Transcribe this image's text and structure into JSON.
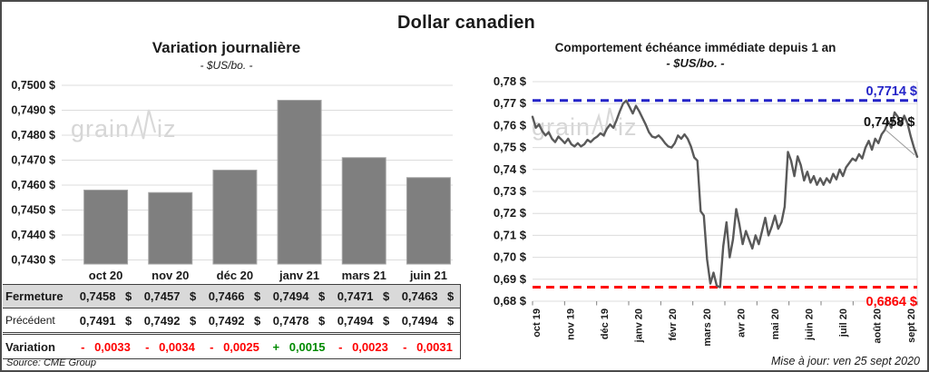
{
  "page": {
    "title": "Dollar canadien",
    "source": "Source: CME Group",
    "updated": "Mise à jour: ven 25 sept 2020",
    "watermark": {
      "left_text": "grain",
      "right_text": "iz"
    }
  },
  "colors": {
    "bar_fill": "#7f7f7f",
    "bar_stroke": "#a6a6a6",
    "line_series": "#595959",
    "grid": "#dcdcdc",
    "max_line": "#2424c8",
    "min_line": "#fe0000",
    "positive": "#008a00",
    "negative": "#fe0000",
    "table_row_bg": "#d9d9d9",
    "axis_text": "#1a1a1a",
    "leader": "#9a9a9a",
    "watermark": "#d6d6d6"
  },
  "chart_data": [
    {
      "type": "bar",
      "title": "Variation journalière",
      "subtitle": "- $US/bo. -",
      "categories": [
        "oct 20",
        "nov 20",
        "déc 20",
        "janv 21",
        "mars 21",
        "juin 21"
      ],
      "values": [
        0.7458,
        0.7457,
        0.7466,
        0.7494,
        0.7471,
        0.7463
      ],
      "ylim": [
        0.74285,
        0.75
      ],
      "ytick_values": [
        0.75,
        0.749,
        0.748,
        0.747,
        0.746,
        0.745,
        0.744,
        0.743
      ],
      "ytick_labels": [
        "0,7500 $",
        "0,7490 $",
        "0,7480 $",
        "0,7470 $",
        "0,7460 $",
        "0,7450 $",
        "0,7440 $",
        "0,7430 $"
      ],
      "grid": true,
      "legend": "none"
    },
    {
      "type": "line",
      "title": "Comportement échéance immédiate depuis 1 an",
      "subtitle": "- $US/bo. -",
      "x_labels": [
        "oct 19",
        "nov 19",
        "déc 19",
        "janv 20",
        "févr 20",
        "mars 20",
        "avr 20",
        "mai 20",
        "juin 20",
        "juil 20",
        "août 20",
        "sept 20"
      ],
      "values": [
        0.764,
        0.759,
        0.7605,
        0.7575,
        0.7555,
        0.757,
        0.754,
        0.7525,
        0.755,
        0.7535,
        0.752,
        0.754,
        0.7515,
        0.7505,
        0.752,
        0.7505,
        0.7515,
        0.7535,
        0.7525,
        0.754,
        0.755,
        0.7565,
        0.7555,
        0.7585,
        0.7605,
        0.759,
        0.7625,
        0.7665,
        0.77,
        0.7714,
        0.7685,
        0.7655,
        0.769,
        0.7665,
        0.7635,
        0.7605,
        0.757,
        0.755,
        0.7545,
        0.7555,
        0.754,
        0.752,
        0.7505,
        0.75,
        0.752,
        0.7555,
        0.754,
        0.756,
        0.754,
        0.7505,
        0.7455,
        0.744,
        0.721,
        0.719,
        0.699,
        0.688,
        0.693,
        0.687,
        0.6864,
        0.705,
        0.716,
        0.7,
        0.708,
        0.722,
        0.715,
        0.706,
        0.712,
        0.708,
        0.704,
        0.71,
        0.706,
        0.712,
        0.718,
        0.71,
        0.714,
        0.719,
        0.713,
        0.716,
        0.723,
        0.748,
        0.744,
        0.737,
        0.746,
        0.742,
        0.735,
        0.739,
        0.734,
        0.737,
        0.733,
        0.736,
        0.733,
        0.736,
        0.734,
        0.738,
        0.7355,
        0.74,
        0.737,
        0.741,
        0.743,
        0.745,
        0.744,
        0.747,
        0.745,
        0.75,
        0.753,
        0.749,
        0.754,
        0.752,
        0.756,
        0.758,
        0.762,
        0.759,
        0.766,
        0.764,
        0.76,
        0.7645,
        0.761,
        0.755,
        0.75,
        0.7458
      ],
      "ylim": [
        0.68,
        0.78
      ],
      "ytick_values": [
        0.78,
        0.77,
        0.76,
        0.75,
        0.74,
        0.73,
        0.72,
        0.71,
        0.7,
        0.69,
        0.68
      ],
      "ytick_labels": [
        "0,78 $",
        "0,77 $",
        "0,76 $",
        "0,75 $",
        "0,74 $",
        "0,73 $",
        "0,72 $",
        "0,71 $",
        "0,70 $",
        "0,69 $",
        "0,68 $"
      ],
      "annotations": {
        "max_line": {
          "value": 0.7714,
          "label": "0,7714 $"
        },
        "min_line": {
          "value": 0.6864,
          "label": "0,6864 $"
        },
        "last_point": {
          "value": 0.7458,
          "label": "0,7458 $"
        }
      },
      "grid": true,
      "legend": "none"
    }
  ],
  "left_table": {
    "headers": [
      "oct 20",
      "nov 20",
      "déc 20",
      "janv 21",
      "mars 21",
      "juin 21"
    ],
    "rows": [
      {
        "label": "Fermeture",
        "values": [
          "0,7458 $",
          "0,7457 $",
          "0,7466 $",
          "0,7494 $",
          "0,7471 $",
          "0,7463 $"
        ]
      },
      {
        "label": "Précédent",
        "values": [
          "0,7491 $",
          "0,7492 $",
          "0,7492 $",
          "0,7478 $",
          "0,7494 $",
          "0,7494 $"
        ]
      },
      {
        "label": "Variation",
        "values": [
          "- 0,0033",
          "- 0,0034",
          "- 0,0025",
          "+ 0,0015",
          "- 0,0023",
          "- 0,0031"
        ]
      }
    ]
  }
}
